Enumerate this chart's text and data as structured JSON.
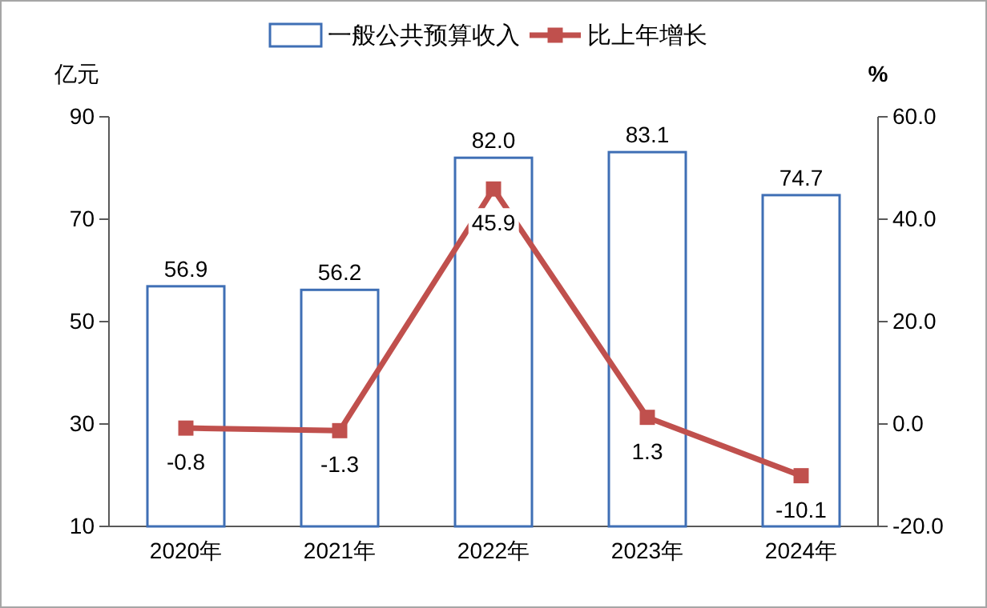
{
  "chart_data": {
    "type": "bar",
    "categories": [
      "2020年",
      "2021年",
      "2022年",
      "2023年",
      "2024年"
    ],
    "series": [
      {
        "name": "一般公共预算收入",
        "color": "#3f6fb5",
        "values": [
          56.9,
          56.2,
          82.0,
          83.1,
          74.7
        ],
        "value_labels": [
          "56.9",
          "56.2",
          "82.0",
          "83.1",
          "74.7"
        ]
      },
      {
        "name": "比上年增长",
        "type": "line",
        "axis": "y2",
        "color": "#c0504d",
        "values": [
          -0.8,
          -1.3,
          45.9,
          1.3,
          -10.1
        ],
        "value_labels": [
          "-0.8",
          "-1.3",
          "45.9",
          "1.3",
          "-10.1"
        ]
      }
    ],
    "ylabel": "亿元",
    "y2label": "%",
    "ylim": [
      10,
      90
    ],
    "yticks": [
      10,
      30,
      50,
      70,
      90
    ],
    "y2lim": [
      -20,
      60
    ],
    "y2ticks": [
      {
        "value": -20,
        "label": "-20.0"
      },
      {
        "value": 0,
        "label": "0.0"
      },
      {
        "value": 20,
        "label": "20.0"
      },
      {
        "value": 40,
        "label": "40.0"
      },
      {
        "value": 60,
        "label": "60.0"
      }
    ],
    "legend": "top",
    "marker": "square"
  }
}
